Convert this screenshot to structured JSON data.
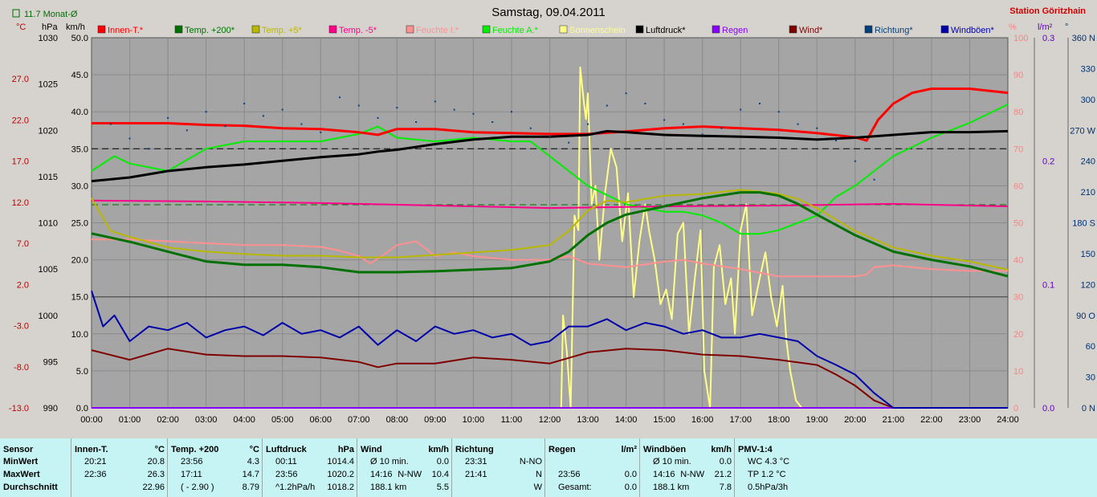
{
  "header": {
    "title": "Samstag, 09.04.2011",
    "station": "Station Göritzhain",
    "monthly_avg": "11.7 Monat-Ø",
    "units_left": [
      "°C",
      "hPa",
      "km/h"
    ],
    "units_right": [
      "%",
      "l/m²",
      "°"
    ]
  },
  "colors": {
    "innen": "#ff0000",
    "temp200": "#007000",
    "temp5": "#b8b800",
    "tempm5": "#ff0088",
    "feuchteI": "#ff9090",
    "feuchteA": "#00ee00",
    "sonne": "#ffff88",
    "luftdruck": "#000000",
    "regen": "#8800ff",
    "wind": "#800000",
    "richtung": "#004080",
    "boeen": "#0000aa",
    "plot_bg": "#a5a5a5",
    "info_bg": "#c6f3f3"
  },
  "chart_data": {
    "type": "line",
    "title": "Samstag, 09.04.2011",
    "grid": true,
    "legend_placement": "top",
    "x_ticks": [
      "00:00",
      "01:00",
      "02:00",
      "03:00",
      "04:00",
      "05:00",
      "06:00",
      "07:00",
      "08:00",
      "09:00",
      "10:00",
      "11:00",
      "12:00",
      "13:00",
      "14:00",
      "15:00",
      "16:00",
      "17:00",
      "18:00",
      "19:00",
      "20:00",
      "21:00",
      "22:00",
      "23:00",
      "24:00"
    ],
    "axes": {
      "temp_c": {
        "ylim": [
          -13,
          32
        ],
        "ticks": [
          "27.0",
          "22.0",
          "17.0",
          "12.0",
          "7.0",
          "2.0",
          "-3.0",
          "-8.0",
          "-13.0"
        ]
      },
      "pressure_hpa": {
        "ylim": [
          990,
          1030
        ],
        "ticks": [
          "1030",
          "1025",
          "1020",
          "1015",
          "1010",
          "1005",
          "1000",
          "995",
          "990"
        ]
      },
      "speed_kmh": {
        "ylim": [
          0,
          50
        ],
        "ticks": [
          "50.0",
          "45.0",
          "40.0",
          "35.0",
          "30.0",
          "25.0",
          "20.0",
          "15.0",
          "10.0",
          "5.0",
          "0.0"
        ]
      },
      "humidity_pct": {
        "ylim": [
          0,
          100
        ],
        "ticks": [
          "100",
          "90",
          "80",
          "70",
          "60",
          "50",
          "40",
          "30",
          "20",
          "10",
          "0"
        ]
      },
      "rain_lm2": {
        "ylim": [
          0,
          0.3
        ],
        "ticks": [
          "0.3",
          "0.2",
          "0.1",
          "0.0"
        ]
      },
      "direction_deg": {
        "ylim": [
          0,
          360
        ],
        "ticks": [
          "360 N",
          "330",
          "300",
          "270 W",
          "240",
          "210",
          "180 S",
          "150",
          "120",
          "90 O",
          "60",
          "30",
          "0 N"
        ]
      }
    },
    "series": [
      {
        "name": "Innen-T.*",
        "key": "innen",
        "axis": "temp_c",
        "x": [
          0,
          1,
          2,
          3,
          4,
          5,
          6,
          7,
          7.5,
          8,
          9,
          10,
          11,
          12,
          13,
          14,
          15,
          16,
          17,
          18,
          19,
          20,
          20.3,
          20.6,
          21,
          21.5,
          22,
          23,
          24
        ],
        "values": [
          21.6,
          21.6,
          21.6,
          21.4,
          21.3,
          21.0,
          20.9,
          20.5,
          20.2,
          20.9,
          20.9,
          20.5,
          20.4,
          20.3,
          20.3,
          20.6,
          21.0,
          21.2,
          21.0,
          20.8,
          20.4,
          19.9,
          19.5,
          22.0,
          24.0,
          25.3,
          25.8,
          25.8,
          25.3
        ]
      },
      {
        "name": "Temp. +200*",
        "key": "temp200",
        "axis": "temp_c",
        "x": [
          0,
          1,
          2,
          3,
          4,
          5,
          6,
          7,
          8,
          9,
          10,
          11,
          12,
          12.5,
          13,
          13.5,
          14,
          15,
          16,
          17,
          17.5,
          18,
          18.5,
          19,
          20,
          21,
          22,
          23,
          24
        ],
        "values": [
          8.2,
          7.2,
          6.0,
          4.8,
          4.4,
          4.4,
          4.1,
          3.5,
          3.5,
          3.6,
          3.8,
          4.0,
          4.8,
          6.0,
          8.0,
          9.5,
          10.5,
          11.5,
          12.5,
          13.2,
          13.2,
          12.8,
          11.8,
          10.5,
          8.0,
          6.0,
          5.0,
          4.2,
          3.0
        ]
      },
      {
        "name": "Temp. +5*",
        "key": "temp5",
        "axis": "temp_c",
        "x": [
          0,
          0.5,
          1,
          2,
          3,
          4,
          5,
          6,
          7,
          8,
          9,
          10,
          11,
          12,
          12.5,
          13,
          13.5,
          14,
          15,
          16,
          17,
          17.5,
          18,
          18.5,
          19,
          20,
          21,
          22,
          23,
          24
        ],
        "values": [
          12.5,
          8.5,
          7.8,
          6.5,
          6.0,
          5.7,
          5.5,
          5.5,
          5.3,
          5.3,
          5.6,
          5.9,
          6.2,
          6.8,
          8.5,
          11.0,
          12.2,
          12.0,
          12.8,
          13.0,
          13.5,
          13.3,
          13.0,
          12.4,
          11.3,
          8.5,
          6.5,
          5.5,
          4.8,
          3.8
        ]
      },
      {
        "name": "Temp. -5*",
        "key": "tempm5",
        "axis": "temp_c",
        "x": [
          0,
          3,
          6,
          9,
          12,
          15,
          18,
          21,
          24
        ],
        "values": [
          12.2,
          12.1,
          11.9,
          11.6,
          11.3,
          11.5,
          11.6,
          11.8,
          11.5
        ]
      },
      {
        "name": "Feuchte I.*",
        "key": "feuchteI",
        "axis": "humidity_pct",
        "x": [
          0,
          1,
          2,
          3,
          4,
          5,
          6,
          6.5,
          7,
          7.3,
          7.6,
          8,
          8.5,
          9,
          9.5,
          10,
          11,
          12,
          12.5,
          13,
          14,
          15,
          15.5,
          16,
          17,
          18,
          19,
          20,
          20.3,
          20.5,
          21,
          22,
          23,
          24
        ],
        "values": [
          45.5,
          45.5,
          45,
          44.5,
          44,
          44,
          43.5,
          42.5,
          41,
          39,
          41,
          44,
          45,
          41,
          42,
          41,
          40,
          40,
          41,
          39,
          38,
          39.5,
          40,
          39,
          37.5,
          35.5,
          35.5,
          35.5,
          36,
          38,
          38.5,
          37.5,
          37,
          37
        ]
      },
      {
        "name": "Feuchte A.*",
        "key": "feuchteA",
        "axis": "humidity_pct",
        "x": [
          0,
          0.6,
          1,
          2,
          3,
          4,
          5,
          6,
          7,
          7.5,
          8,
          9,
          10,
          11,
          11.5,
          12,
          13,
          14,
          15,
          15.5,
          16,
          16.5,
          17,
          17.5,
          18,
          19,
          19.5,
          20,
          20.5,
          21,
          22,
          23,
          24
        ],
        "values": [
          64,
          68,
          66,
          64,
          70,
          72,
          72,
          72,
          74,
          76,
          73,
          72,
          73,
          72,
          72,
          68,
          60,
          55,
          53,
          53,
          52,
          50,
          47,
          47,
          48,
          52,
          57,
          60,
          64,
          68,
          73,
          77,
          82
        ]
      },
      {
        "name": "Sonnenschein",
        "key": "sonne",
        "axis": "humidity_pct",
        "x": [
          0,
          12.3,
          12.35,
          12.45,
          12.55,
          12.65,
          12.75,
          12.8,
          12.9,
          12.95,
          13,
          13.05,
          13.1,
          13.2,
          13.3,
          13.45,
          13.6,
          13.75,
          13.9,
          14.05,
          14.2,
          14.35,
          14.5,
          14.6,
          14.75,
          14.9,
          15.05,
          15.2,
          15.35,
          15.5,
          15.65,
          15.8,
          15.95,
          16.05,
          16.2,
          16.3,
          16.45,
          16.6,
          16.75,
          16.85,
          17,
          17.15,
          17.3,
          17.5,
          17.65,
          17.8,
          17.95,
          18.1,
          18.2,
          18.3,
          18.45,
          18.6,
          24
        ],
        "values": [
          0,
          0,
          25,
          15,
          0,
          52,
          48,
          92,
          82,
          78,
          85,
          70,
          55,
          60,
          40,
          58,
          70,
          65,
          45,
          58,
          30,
          45,
          55,
          48,
          40,
          28,
          32,
          24,
          47,
          50,
          20,
          35,
          48,
          10,
          0,
          38,
          44,
          28,
          35,
          20,
          48,
          55,
          25,
          35,
          42,
          30,
          22,
          33,
          18,
          10,
          2,
          0,
          0
        ]
      },
      {
        "name": "Luftdruck*",
        "key": "luftdruck",
        "axis": "pressure_hpa",
        "x": [
          0,
          1,
          2,
          3,
          4,
          5,
          6,
          7,
          7.5,
          8,
          9,
          10,
          11,
          12,
          13,
          13.5,
          14,
          15,
          16,
          17,
          18,
          19,
          20,
          21,
          22,
          23,
          24
        ],
        "values": [
          1014.5,
          1014.9,
          1015.6,
          1016.0,
          1016.3,
          1016.7,
          1017.1,
          1017.4,
          1017.7,
          1017.9,
          1018.5,
          1019.0,
          1019.3,
          1019.3,
          1019.5,
          1019.9,
          1019.8,
          1019.5,
          1019.4,
          1019.3,
          1019.2,
          1019.0,
          1019.2,
          1019.5,
          1019.8,
          1019.8,
          1019.9
        ]
      },
      {
        "name": "Regen",
        "key": "regen",
        "axis": "rain_lm2",
        "x": [
          0,
          24
        ],
        "values": [
          0.0,
          0.0
        ]
      },
      {
        "name": "Wind*",
        "key": "wind",
        "axis": "speed_kmh",
        "x": [
          0,
          1,
          2,
          3,
          4,
          5,
          6,
          7,
          7.5,
          8,
          9,
          10,
          11,
          12,
          13,
          14,
          15,
          16,
          17,
          18,
          19,
          19.5,
          20,
          20.5,
          21,
          21.5,
          24
        ],
        "values": [
          7.8,
          6.5,
          8.0,
          7.2,
          7.0,
          7.0,
          6.8,
          6.2,
          5.5,
          6.0,
          6.0,
          6.8,
          6.5,
          6.0,
          7.5,
          8.0,
          7.8,
          7.2,
          7.0,
          6.5,
          5.8,
          4.5,
          3.0,
          1.0,
          0.0,
          0.0,
          0.0
        ]
      },
      {
        "name": "Richtung*",
        "key": "richtung",
        "axis": "direction_deg",
        "x": [
          0.5,
          1,
          1.5,
          2,
          2.5,
          3,
          3.5,
          4,
          4.5,
          5,
          5.5,
          6,
          6.5,
          7,
          7.5,
          8,
          8.5,
          9,
          9.5,
          10,
          10.5,
          11,
          11.5,
          12,
          12.5,
          13,
          13.5,
          14,
          14.5,
          15,
          15.5,
          16,
          16.5,
          17,
          17.5,
          18,
          18.5,
          19,
          19.5,
          20,
          20.5
        ],
        "values": [
          276,
          262,
          252,
          282,
          270,
          288,
          274,
          296,
          284,
          290,
          276,
          268,
          302,
          294,
          282,
          292,
          278,
          298,
          290,
          286,
          278,
          288,
          272,
          264,
          258,
          276,
          294,
          306,
          296,
          280,
          276,
          266,
          272,
          290,
          296,
          288,
          276,
          272,
          260,
          240,
          222
        ]
      },
      {
        "name": "Windböen*",
        "key": "boeen",
        "axis": "speed_kmh",
        "x": [
          0,
          0.3,
          0.6,
          1,
          1.5,
          2,
          2.5,
          3,
          3.5,
          4,
          4.5,
          5,
          5.5,
          6,
          6.5,
          7,
          7.5,
          8,
          8.5,
          9,
          9.5,
          10,
          10.5,
          11,
          11.5,
          12,
          12.5,
          13,
          13.5,
          14,
          14.5,
          15,
          15.5,
          16,
          16.5,
          17,
          17.5,
          18,
          18.5,
          19,
          19.5,
          20,
          20.5,
          21,
          24
        ],
        "values": [
          15.8,
          11.0,
          12.5,
          9.0,
          11.0,
          10.5,
          11.5,
          9.5,
          10.5,
          11.0,
          9.8,
          11.5,
          10.0,
          10.5,
          9.5,
          11.0,
          8.5,
          10.5,
          9.0,
          11.0,
          10.0,
          10.5,
          9.5,
          10.0,
          8.5,
          9.0,
          11.0,
          11.0,
          12.0,
          10.5,
          11.5,
          11.0,
          10.0,
          10.5,
          9.5,
          9.5,
          10.0,
          9.5,
          9.0,
          7.0,
          5.8,
          4.5,
          2.0,
          0.0,
          0.0
        ]
      }
    ]
  },
  "table": {
    "cols": [
      {
        "title": "Sensor",
        "unit": "",
        "rows": [
          [
            "MinWert",
            "",
            ""
          ],
          [
            "MaxWert",
            "",
            ""
          ],
          [
            "Durchschnitt",
            "",
            ""
          ]
        ]
      },
      {
        "title": "Innen-T.",
        "unit": "°C",
        "rows": [
          [
            "20:21",
            "",
            "20.8"
          ],
          [
            "22:36",
            "",
            "26.3"
          ],
          [
            "",
            "",
            "22.96"
          ]
        ]
      },
      {
        "title": "Temp. +200",
        "unit": "°C",
        "rows": [
          [
            "23:56",
            "",
            "4.3"
          ],
          [
            "17:11",
            "",
            "14.7"
          ],
          [
            "( - 2.90 )",
            "",
            "8.79"
          ]
        ]
      },
      {
        "title": "Luftdruck",
        "unit": "hPa",
        "rows": [
          [
            "00:11",
            "",
            "1014.4"
          ],
          [
            "23:56",
            "",
            "1020.2"
          ],
          [
            "^1.2hPa/h",
            "",
            "1018.2"
          ]
        ]
      },
      {
        "title": "Wind",
        "unit": "km/h",
        "rows": [
          [
            "Ø 10 min.",
            "",
            "0.0"
          ],
          [
            "14:16",
            "N-NW",
            "10.4"
          ],
          [
            "188.1 km",
            "",
            "5.5"
          ]
        ]
      },
      {
        "title": "Richtung",
        "unit": "",
        "rows": [
          [
            "23:31",
            "",
            "N-NO"
          ],
          [
            "21:41",
            "",
            "N"
          ],
          [
            "",
            "",
            "W"
          ]
        ]
      },
      {
        "title": "Regen",
        "unit": "l/m²",
        "rows": [
          [
            "",
            "",
            ""
          ],
          [
            "23:56",
            "",
            "0.0"
          ],
          [
            "Gesamt:",
            "",
            "0.0"
          ]
        ]
      },
      {
        "title": "Windböen",
        "unit": "km/h",
        "rows": [
          [
            "Ø 10 min.",
            "",
            "0.0"
          ],
          [
            "14:16",
            "N-NW",
            "21.2"
          ],
          [
            "188.1 km",
            "",
            "7.8"
          ]
        ]
      },
      {
        "title": "PMV-1:4",
        "unit": "",
        "rows": [
          [
            "WC 4.3 °C",
            "",
            ""
          ],
          [
            "TP 1.2 °C",
            "",
            ""
          ],
          [
            "0.5hPa/3h",
            "",
            ""
          ]
        ]
      }
    ]
  }
}
